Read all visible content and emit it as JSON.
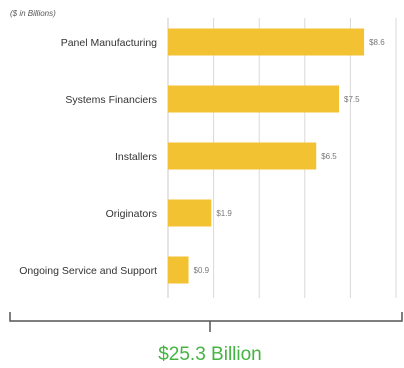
{
  "chart_data": {
    "type": "bar",
    "orientation": "horizontal",
    "unit_note": "($ in Billions)",
    "categories": [
      "Panel Manufacturing",
      "Systems Financiers",
      "Installers",
      "Originators",
      "Ongoing Service and Support"
    ],
    "values": [
      8.6,
      7.5,
      6.5,
      1.9,
      0.9
    ],
    "value_labels": [
      "$8.6",
      "$7.5",
      "$6.5",
      "$1.9",
      "$0.9"
    ],
    "xlim": [
      0,
      10
    ],
    "grid": true,
    "legend": "none",
    "total_label": "$25.3 Billion"
  },
  "colors": {
    "bar": "#F2C232",
    "grid": "#d9d9d9",
    "text": "#333333",
    "value_text": "#777777",
    "bracket": "#555555",
    "total": "#44b441"
  }
}
